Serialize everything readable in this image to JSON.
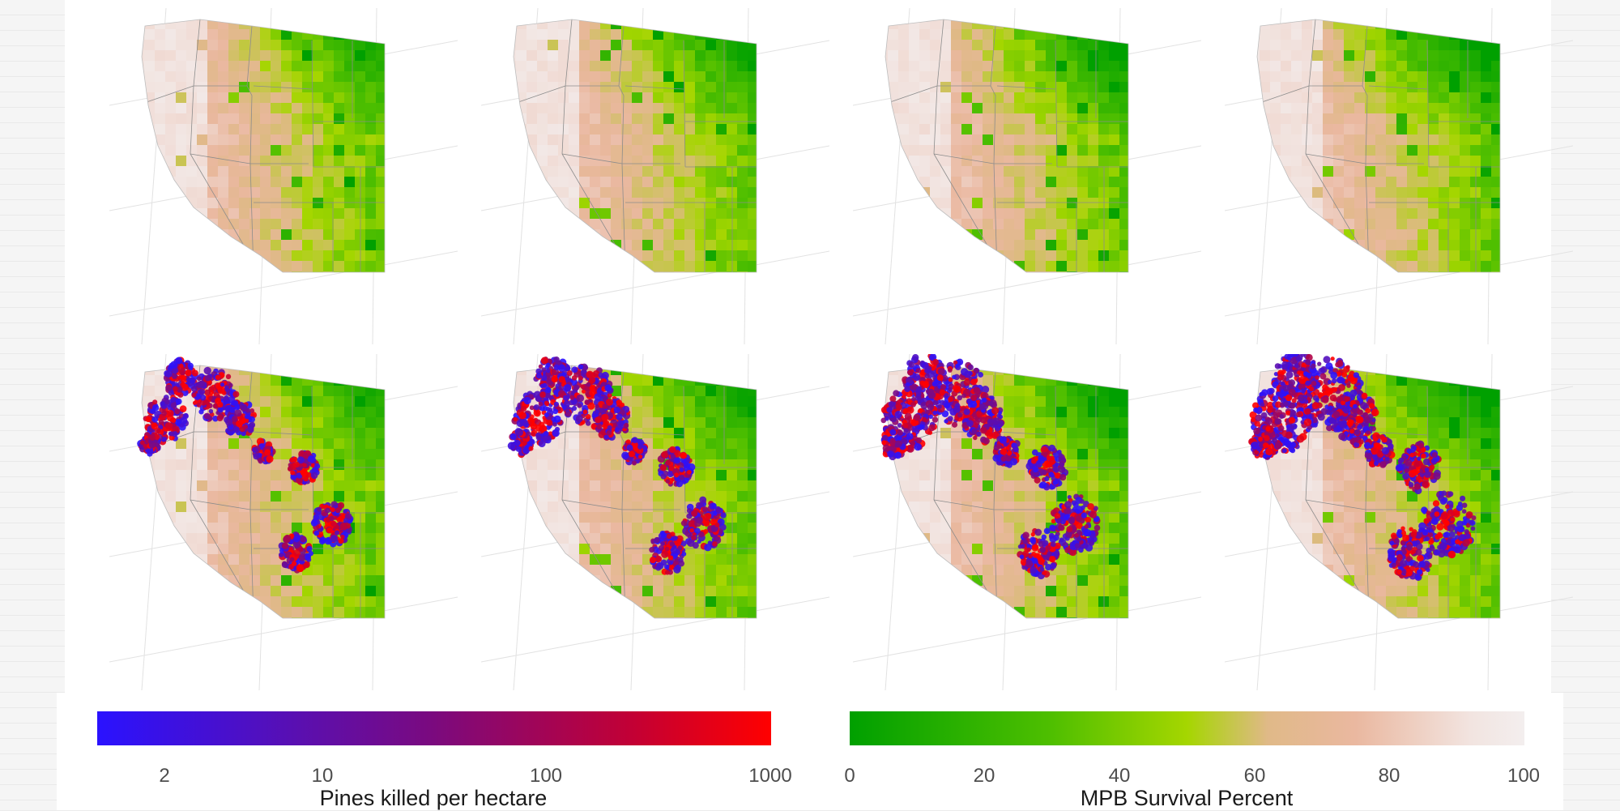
{
  "layout": {
    "columns": 4,
    "rows": 2
  },
  "map": {
    "region": "Western United States",
    "top_row_content": "MPB survival percent grid",
    "bottom_row_content": "MPB survival percent grid with pines-killed points"
  },
  "legends": {
    "pines_killed": {
      "title": "Pines killed per hectare",
      "scale": "log",
      "range": [
        1,
        1000
      ],
      "ticks": [
        "2",
        "10",
        "100",
        "1000"
      ],
      "tick_values": [
        2,
        10,
        100,
        1000
      ],
      "colors": [
        "#2a12ff",
        "#7b0a7e",
        "#ff0000"
      ]
    },
    "survival": {
      "title": "MPB Survival Percent",
      "range": [
        0,
        100
      ],
      "ticks": [
        "0",
        "20",
        "40",
        "60",
        "80",
        "100"
      ],
      "tick_values": [
        0,
        20,
        40,
        60,
        80,
        100
      ],
      "colors": [
        "#00a000",
        "#a5d600",
        "#eab8a0",
        "#f3eeee"
      ]
    }
  }
}
